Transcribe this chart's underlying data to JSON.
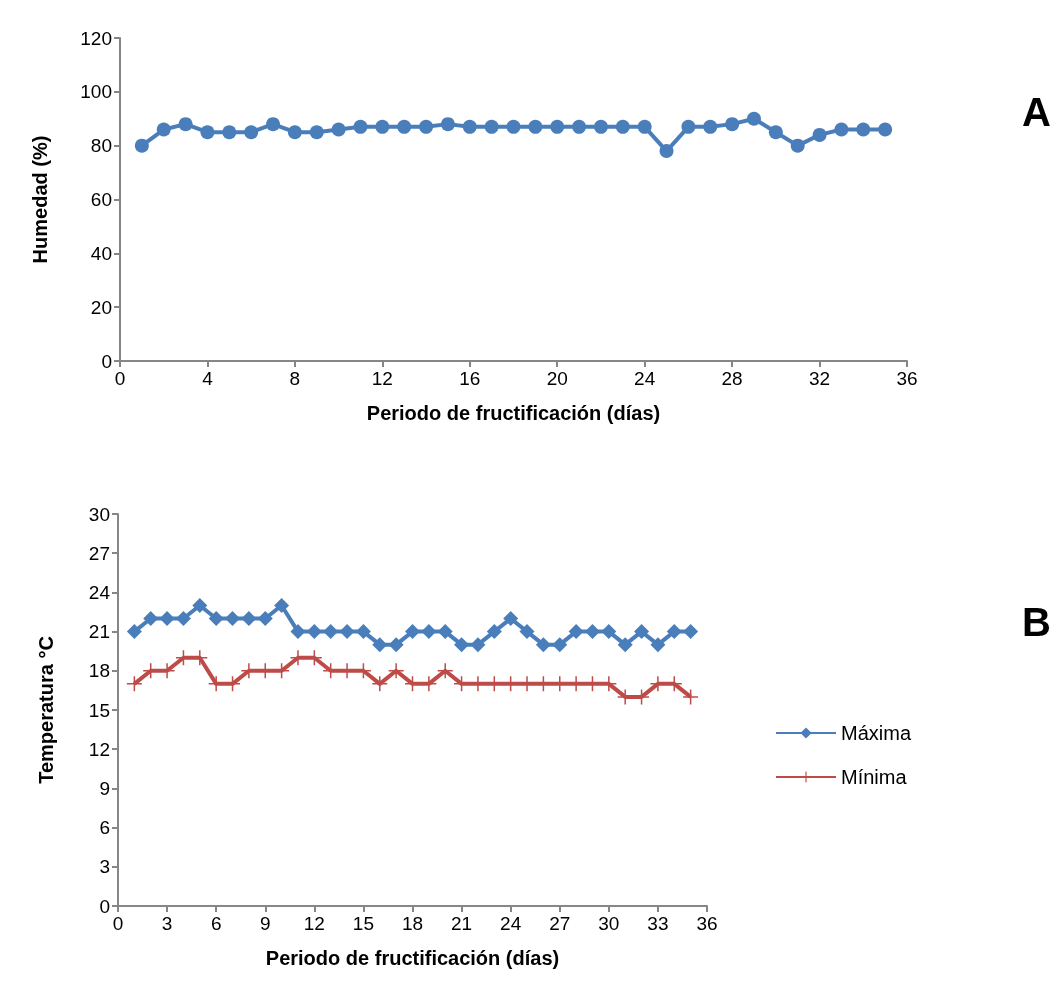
{
  "chart_data": [
    {
      "type": "line",
      "xlabel": "Periodo de fructificación (días)",
      "ylabel": "Humedad (%)",
      "annotations": [
        "A"
      ],
      "x": [
        1,
        2,
        3,
        4,
        5,
        6,
        7,
        8,
        9,
        10,
        11,
        12,
        13,
        14,
        15,
        16,
        17,
        18,
        19,
        20,
        21,
        22,
        23,
        24,
        25,
        26,
        27,
        28,
        29,
        30,
        31,
        32,
        33,
        34,
        35
      ],
      "series": [
        {
          "color": "#4a7ebb",
          "marker": "circle",
          "values": [
            80,
            86,
            88,
            85,
            85,
            85,
            88,
            85,
            85,
            86,
            87,
            87,
            87,
            87,
            88,
            87,
            87,
            87,
            87,
            87,
            87,
            87,
            87,
            87,
            78,
            87,
            87,
            88,
            90,
            85,
            80,
            84,
            86,
            86,
            86
          ]
        }
      ],
      "xlim": [
        0,
        36
      ],
      "xticks": [
        0,
        4,
        8,
        12,
        16,
        20,
        24,
        28,
        32,
        36
      ],
      "ylim": [
        0,
        120
      ],
      "yticks": [
        0,
        20,
        40,
        60,
        80,
        100,
        120
      ],
      "grid": false,
      "legend": false
    },
    {
      "type": "line",
      "xlabel": "Periodo de fructificación (días)",
      "ylabel": "Temperatura °C",
      "annotations": [
        "B"
      ],
      "x": [
        1,
        2,
        3,
        4,
        5,
        6,
        7,
        8,
        9,
        10,
        11,
        12,
        13,
        14,
        15,
        16,
        17,
        18,
        19,
        20,
        21,
        22,
        23,
        24,
        25,
        26,
        27,
        28,
        29,
        30,
        31,
        32,
        33,
        34,
        35
      ],
      "series": [
        {
          "name": "Máxima",
          "color": "#4a7ebb",
          "marker": "diamond",
          "values": [
            21,
            22,
            22,
            22,
            23,
            22,
            22,
            22,
            22,
            23,
            21,
            21,
            21,
            21,
            21,
            20,
            20,
            21,
            21,
            21,
            20,
            20,
            21,
            22,
            21,
            20,
            20,
            21,
            21,
            21,
            20,
            21,
            20,
            21,
            21
          ]
        },
        {
          "name": "Mínima",
          "color": "#be4b48",
          "marker": "cross",
          "values": [
            17,
            18,
            18,
            19,
            19,
            17,
            17,
            18,
            18,
            18,
            19,
            19,
            18,
            18,
            18,
            17,
            18,
            17,
            17,
            18,
            17,
            17,
            17,
            17,
            17,
            17,
            17,
            17,
            17,
            17,
            16,
            16,
            17,
            17,
            16
          ]
        }
      ],
      "xlim": [
        0,
        36
      ],
      "xticks": [
        0,
        3,
        6,
        9,
        12,
        15,
        18,
        21,
        24,
        27,
        30,
        33,
        36
      ],
      "ylim": [
        0,
        30
      ],
      "yticks": [
        0,
        3,
        6,
        9,
        12,
        15,
        18,
        21,
        24,
        27,
        30
      ],
      "grid": false,
      "legend": "right"
    }
  ]
}
